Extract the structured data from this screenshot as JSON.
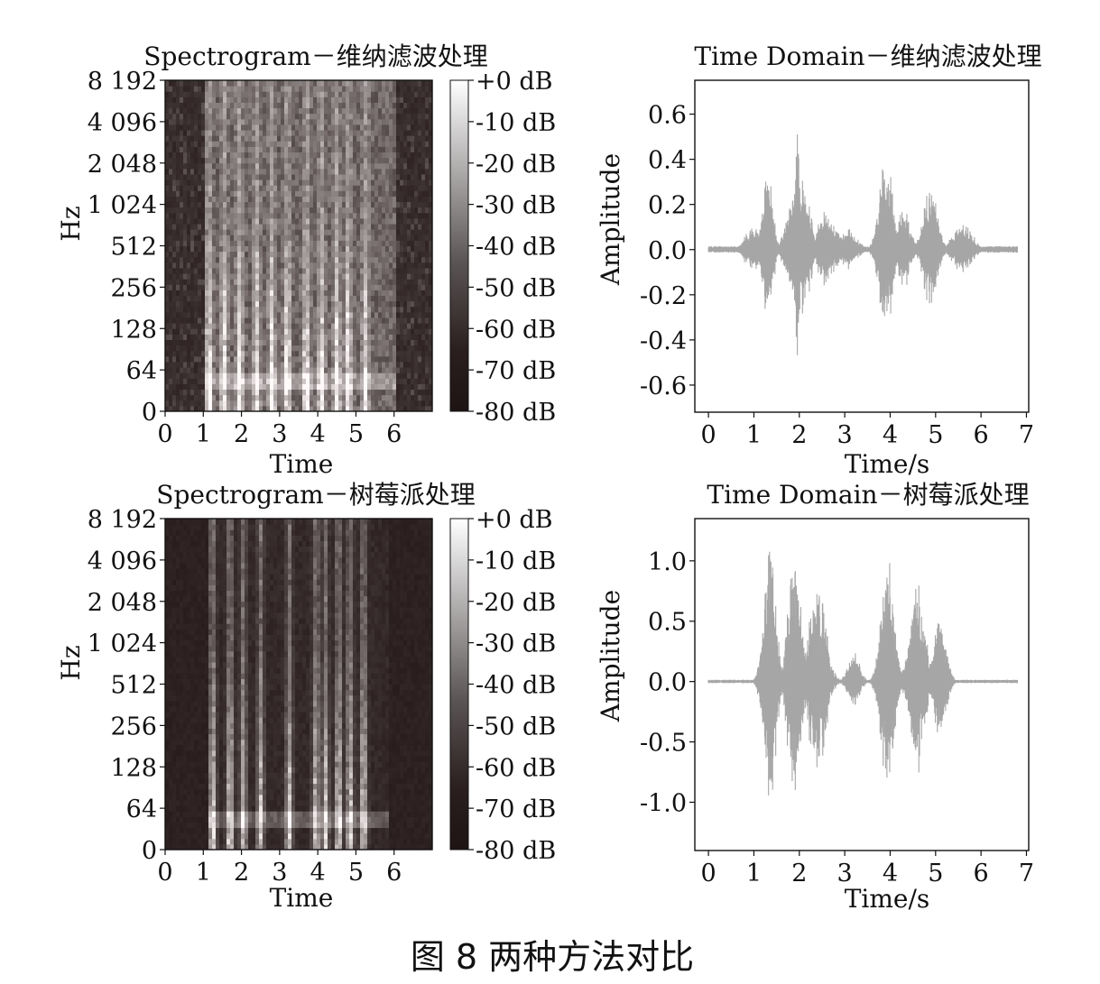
{
  "figure_caption": "图 8 两种方法对比",
  "colors": {
    "waveform": "#a6a6a6",
    "axis": "#111111",
    "spectro_dark": "#1e1414",
    "spectro_light": "#ffffff"
  },
  "chart_data": [
    {
      "id": "spec1",
      "type": "heatmap",
      "title": "Spectrogram－维纳滤波处理",
      "xlabel": "Time",
      "ylabel": "Hz",
      "xticks": [
        "0",
        "1",
        "2",
        "3",
        "4",
        "5",
        "6"
      ],
      "xlim": [
        0,
        7
      ],
      "yticks": [
        "0",
        "64",
        "128",
        "256",
        "512",
        "1 024",
        "2 048",
        "4 096",
        "8 192"
      ],
      "colorbar_labels": [
        "+0 dB",
        "-10 dB",
        "-20 dB",
        "-30 dB",
        "-40 dB",
        "-50 dB",
        "-60 dB",
        "-70 dB",
        "-80 dB"
      ],
      "active_range": [
        1.0,
        6.1
      ],
      "background": "noise",
      "bursts": [
        1.15,
        1.55,
        1.95,
        2.4,
        2.8,
        3.2,
        3.7,
        4.1,
        4.5,
        4.8,
        5.25
      ]
    },
    {
      "id": "wave1",
      "type": "line",
      "title": "Time Domain－维纳滤波处理",
      "xlabel": "Time/s",
      "ylabel": "Amplitude",
      "xticks": [
        "0",
        "1",
        "2",
        "3",
        "4",
        "5",
        "6",
        "7"
      ],
      "xlim": [
        -0.3,
        7.05
      ],
      "yticks": [
        "0.6",
        "0.4",
        "0.2",
        "0.0",
        "-0.2",
        "-0.4",
        "-0.6"
      ],
      "ytick_values": [
        0.6,
        0.4,
        0.2,
        0.0,
        -0.2,
        -0.4,
        -0.6
      ],
      "ylim": [
        -0.72,
        0.75
      ],
      "signal_range": [
        0.0,
        6.8
      ],
      "noise_floor": 0.015,
      "envelope": [
        {
          "t": 1.0,
          "amp": 0.12,
          "w": 0.25
        },
        {
          "t": 1.3,
          "amp": 0.42,
          "w": 0.15
        },
        {
          "t": 1.95,
          "amp": 0.68,
          "w": 0.06
        },
        {
          "t": 2.0,
          "amp": 0.35,
          "w": 0.3
        },
        {
          "t": 2.6,
          "amp": 0.2,
          "w": 0.25
        },
        {
          "t": 3.0,
          "amp": 0.1,
          "w": 0.35
        },
        {
          "t": 3.9,
          "amp": 0.45,
          "w": 0.2
        },
        {
          "t": 4.3,
          "amp": 0.22,
          "w": 0.2
        },
        {
          "t": 4.9,
          "amp": 0.3,
          "w": 0.22
        },
        {
          "t": 5.6,
          "amp": 0.12,
          "w": 0.3
        }
      ]
    },
    {
      "id": "spec2",
      "type": "heatmap",
      "title": "Spectrogram－树莓派处理",
      "xlabel": "Time",
      "ylabel": "Hz",
      "xticks": [
        "0",
        "1",
        "2",
        "3",
        "4",
        "5",
        "6"
      ],
      "xlim": [
        0,
        7
      ],
      "yticks": [
        "0",
        "64",
        "128",
        "256",
        "512",
        "1 024",
        "2 048",
        "4 096",
        "8 192"
      ],
      "colorbar_labels": [
        "+0 dB",
        "-10 dB",
        "-20 dB",
        "-30 dB",
        "-40 dB",
        "-50 dB",
        "-60 dB",
        "-70 dB",
        "-80 dB"
      ],
      "active_range": [
        1.1,
        5.9
      ],
      "background": "dark",
      "bursts": [
        1.25,
        1.7,
        2.05,
        2.5,
        3.25,
        3.95,
        4.2,
        4.55,
        4.85,
        5.2
      ]
    },
    {
      "id": "wave2",
      "type": "line",
      "title": "Time Domain－树莓派处理",
      "xlabel": "Time/s",
      "ylabel": "Amplitude",
      "xticks": [
        "0",
        "1",
        "2",
        "3",
        "4",
        "5",
        "6",
        "7"
      ],
      "xlim": [
        -0.3,
        7.05
      ],
      "yticks": [
        "1.0",
        "0.5",
        "0.0",
        "-0.5",
        "-1.0"
      ],
      "ytick_values": [
        1.0,
        0.5,
        0.0,
        -0.5,
        -1.0
      ],
      "ylim": [
        -1.4,
        1.35
      ],
      "signal_range": [
        0.0,
        6.8
      ],
      "noise_floor": 0.015,
      "envelope": [
        {
          "t": 1.35,
          "amp": 1.2,
          "w": 0.18
        },
        {
          "t": 1.9,
          "amp": 1.15,
          "w": 0.2
        },
        {
          "t": 2.4,
          "amp": 0.95,
          "w": 0.25
        },
        {
          "t": 3.2,
          "amp": 0.28,
          "w": 0.18
        },
        {
          "t": 3.95,
          "amp": 1.1,
          "w": 0.2
        },
        {
          "t": 4.6,
          "amp": 0.9,
          "w": 0.22
        },
        {
          "t": 5.1,
          "amp": 0.65,
          "w": 0.18
        }
      ]
    }
  ]
}
